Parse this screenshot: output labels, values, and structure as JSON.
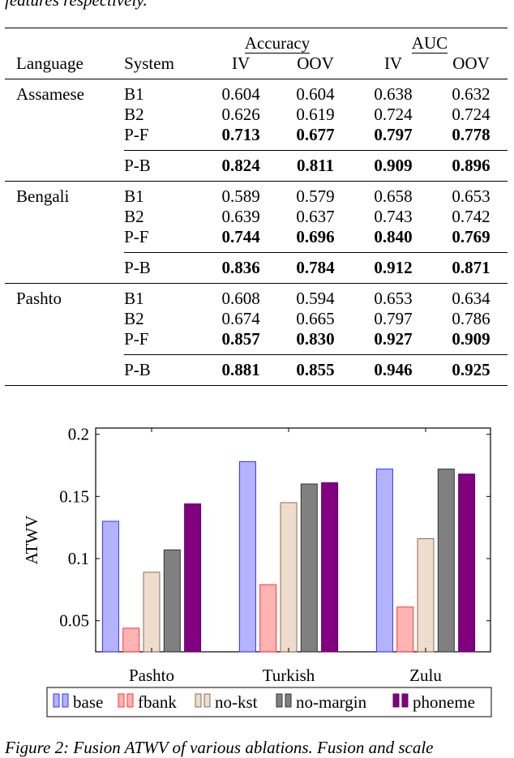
{
  "top_caption": "features respectively.",
  "table": {
    "groups": {
      "accuracy": "Accuracy",
      "auc": "AUC"
    },
    "headers": {
      "language": "Language",
      "system": "System",
      "acc_iv": "IV",
      "acc_oov": "OOV",
      "auc_iv": "IV",
      "auc_oov": "OOV"
    },
    "sections": [
      {
        "language": "Assamese",
        "rows": [
          {
            "system": "B1",
            "vals": [
              "0.604",
              "0.604",
              "0.638",
              "0.632"
            ]
          },
          {
            "system": "B2",
            "vals": [
              "0.626",
              "0.619",
              "0.724",
              "0.724"
            ]
          },
          {
            "system": "P-F",
            "vals": [
              "0.713",
              "0.677",
              "0.797",
              "0.778"
            ]
          },
          {
            "system": "P-B",
            "vals": [
              "0.824",
              "0.811",
              "0.909",
              "0.896"
            ]
          }
        ]
      },
      {
        "language": "Bengali",
        "rows": [
          {
            "system": "B1",
            "vals": [
              "0.589",
              "0.579",
              "0.658",
              "0.653"
            ]
          },
          {
            "system": "B2",
            "vals": [
              "0.639",
              "0.637",
              "0.743",
              "0.742"
            ]
          },
          {
            "system": "P-F",
            "vals": [
              "0.744",
              "0.696",
              "0.840",
              "0.769"
            ]
          },
          {
            "system": "P-B",
            "vals": [
              "0.836",
              "0.784",
              "0.912",
              "0.871"
            ]
          }
        ]
      },
      {
        "language": "Pashto",
        "rows": [
          {
            "system": "B1",
            "vals": [
              "0.608",
              "0.594",
              "0.653",
              "0.634"
            ]
          },
          {
            "system": "B2",
            "vals": [
              "0.674",
              "0.665",
              "0.797",
              "0.786"
            ]
          },
          {
            "system": "P-F",
            "vals": [
              "0.857",
              "0.830",
              "0.927",
              "0.909"
            ]
          },
          {
            "system": "P-B",
            "vals": [
              "0.881",
              "0.855",
              "0.946",
              "0.925"
            ]
          }
        ]
      }
    ]
  },
  "chart_data": {
    "type": "bar",
    "ylabel": "ATWV",
    "xlabel": "",
    "ylim": [
      0.025,
      0.205
    ],
    "yticks": [
      0.05,
      0.1,
      0.15,
      0.2
    ],
    "ytick_labels": [
      "0.05",
      "0.1",
      "0.15",
      "0.2"
    ],
    "categories": [
      "Pashto",
      "Turkish",
      "Zulu"
    ],
    "series": [
      {
        "name": "base",
        "fill": "#b3b3ff",
        "stroke": "#3333ff",
        "values": [
          0.13,
          0.178,
          0.172
        ]
      },
      {
        "name": "fbank",
        "fill": "#ffb3b3",
        "stroke": "#ff3333",
        "values": [
          0.044,
          0.079,
          0.061
        ]
      },
      {
        "name": "no-kst",
        "fill": "#eedccc",
        "stroke": "#8c6e55",
        "values": [
          0.089,
          0.145,
          0.116
        ]
      },
      {
        "name": "no-margin",
        "fill": "#808080",
        "stroke": "#333333",
        "values": [
          0.107,
          0.16,
          0.172
        ]
      },
      {
        "name": "phoneme",
        "fill": "#800080",
        "stroke": "#660066",
        "values": [
          0.144,
          0.161,
          0.168
        ]
      }
    ],
    "legend_position": "bottom"
  },
  "fig_caption": "Figure 2: Fusion ATWV of various ablations. Fusion and scale"
}
